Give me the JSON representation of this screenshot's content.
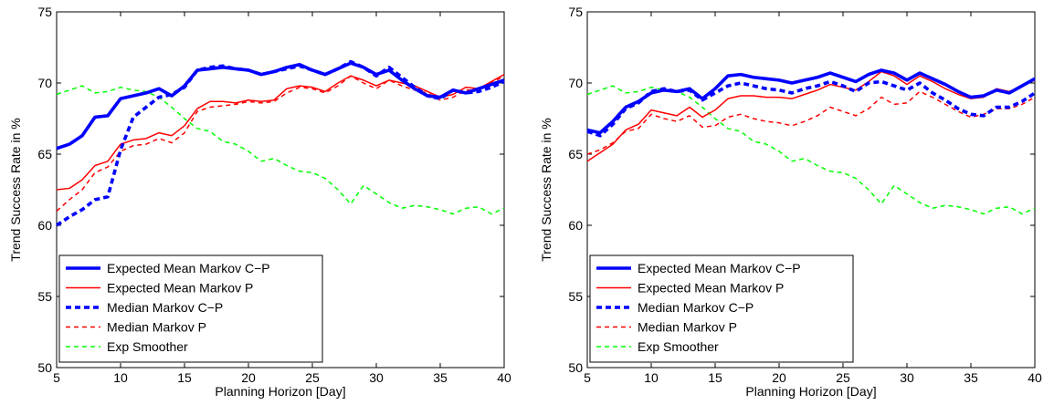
{
  "chart_data": [
    {
      "type": "line",
      "xlabel": "Planning Horizon [Day]",
      "ylabel": "Trend Success Rate in %",
      "xlim": [
        5,
        40
      ],
      "ylim": [
        50,
        75
      ],
      "xticks": [
        5,
        10,
        15,
        20,
        25,
        30,
        35,
        40
      ],
      "yticks": [
        50,
        55,
        60,
        65,
        70,
        75
      ],
      "grid": false,
      "legend_position": "bottom-left",
      "series": [
        {
          "name": "Expected Mean Markov C−P",
          "color": "#0000ff",
          "style": "solid",
          "weight": "thick",
          "x": [
            5,
            6,
            7,
            8,
            9,
            10,
            11,
            12,
            13,
            14,
            15,
            16,
            17,
            18,
            19,
            20,
            21,
            22,
            23,
            24,
            25,
            26,
            27,
            28,
            29,
            30,
            31,
            32,
            33,
            34,
            35,
            36,
            37,
            38,
            39,
            40
          ],
          "y": [
            65.4,
            65.7,
            66.3,
            67.6,
            67.7,
            68.9,
            69.1,
            69.3,
            69.6,
            69.1,
            69.8,
            70.9,
            71.0,
            71.1,
            71.0,
            70.9,
            70.6,
            70.8,
            71.1,
            71.3,
            70.9,
            70.6,
            71.0,
            71.4,
            71.1,
            70.6,
            70.9,
            70.2,
            69.6,
            69.1,
            69.0,
            69.5,
            69.3,
            69.6,
            69.9,
            70.2
          ]
        },
        {
          "name": "Expected Mean Markov P",
          "color": "#ff0000",
          "style": "solid",
          "weight": "thin",
          "x": [
            5,
            6,
            7,
            8,
            9,
            10,
            11,
            12,
            13,
            14,
            15,
            16,
            17,
            18,
            19,
            20,
            21,
            22,
            23,
            24,
            25,
            26,
            27,
            28,
            29,
            30,
            31,
            32,
            33,
            34,
            35,
            36,
            37,
            38,
            39,
            40
          ],
          "y": [
            62.5,
            62.6,
            63.2,
            64.2,
            64.5,
            65.7,
            66.0,
            66.1,
            66.5,
            66.3,
            67.0,
            68.2,
            68.7,
            68.7,
            68.6,
            68.8,
            68.7,
            68.8,
            69.6,
            69.8,
            69.7,
            69.4,
            70.0,
            70.5,
            70.2,
            69.8,
            70.2,
            70.0,
            69.8,
            69.4,
            69.0,
            69.2,
            69.7,
            69.6,
            70.1,
            70.6
          ]
        },
        {
          "name": "Median Markov C−P",
          "color": "#0000ff",
          "style": "dashed",
          "weight": "thick",
          "x": [
            5,
            6,
            7,
            8,
            9,
            10,
            11,
            12,
            13,
            14,
            15,
            16,
            17,
            18,
            19,
            20,
            21,
            22,
            23,
            24,
            25,
            26,
            27,
            28,
            29,
            30,
            31,
            32,
            33,
            34,
            35,
            36,
            37,
            38,
            39,
            40
          ],
          "y": [
            60.0,
            60.6,
            61.1,
            61.8,
            62.0,
            65.3,
            67.6,
            68.3,
            69.0,
            69.2,
            69.7,
            70.9,
            71.1,
            71.2,
            71.0,
            70.9,
            70.6,
            70.8,
            71.0,
            71.2,
            70.9,
            70.6,
            71.0,
            71.5,
            71.1,
            70.5,
            71.1,
            70.4,
            69.7,
            69.1,
            68.9,
            69.5,
            69.3,
            69.4,
            69.7,
            70.1
          ]
        },
        {
          "name": "Median Markov P",
          "color": "#ff0000",
          "style": "dashed",
          "weight": "thin",
          "x": [
            5,
            6,
            7,
            8,
            9,
            10,
            11,
            12,
            13,
            14,
            15,
            16,
            17,
            18,
            19,
            20,
            21,
            22,
            23,
            24,
            25,
            26,
            27,
            28,
            29,
            30,
            31,
            32,
            33,
            34,
            35,
            36,
            37,
            38,
            39,
            40
          ],
          "y": [
            61.0,
            61.8,
            62.5,
            63.7,
            64.1,
            65.2,
            65.6,
            65.7,
            66.1,
            65.8,
            66.5,
            68.0,
            68.3,
            68.4,
            68.5,
            68.7,
            68.6,
            68.7,
            69.3,
            69.7,
            69.6,
            69.3,
            69.8,
            70.5,
            70.0,
            69.6,
            70.2,
            69.8,
            69.5,
            69.3,
            68.8,
            69.0,
            69.5,
            69.5,
            70.0,
            70.5
          ]
        },
        {
          "name": "Exp Smoother",
          "color": "#00ff00",
          "style": "dashed",
          "weight": "thin",
          "x": [
            5,
            6,
            7,
            8,
            9,
            10,
            11,
            12,
            13,
            14,
            15,
            16,
            17,
            18,
            19,
            20,
            21,
            22,
            23,
            24,
            25,
            26,
            27,
            28,
            29,
            30,
            31,
            32,
            33,
            34,
            35,
            36,
            37,
            38,
            39,
            40
          ],
          "y": [
            69.2,
            69.5,
            69.8,
            69.3,
            69.4,
            69.7,
            69.5,
            69.4,
            69.0,
            68.3,
            67.5,
            66.8,
            66.6,
            65.9,
            65.7,
            65.2,
            64.5,
            64.7,
            64.2,
            63.8,
            63.7,
            63.3,
            62.5,
            61.5,
            62.8,
            62.2,
            61.6,
            61.2,
            61.4,
            61.3,
            61.1,
            60.8,
            61.2,
            61.3,
            60.8,
            61.2
          ]
        }
      ]
    },
    {
      "type": "line",
      "xlabel": "Planning Horizon [Day]",
      "ylabel": "Trend Success Rate in %",
      "xlim": [
        5,
        40
      ],
      "ylim": [
        50,
        75
      ],
      "xticks": [
        5,
        10,
        15,
        20,
        25,
        30,
        35,
        40
      ],
      "yticks": [
        50,
        55,
        60,
        65,
        70,
        75
      ],
      "grid": false,
      "legend_position": "bottom-left",
      "series": [
        {
          "name": "Expected Mean Markov C−P",
          "color": "#0000ff",
          "style": "solid",
          "weight": "thick",
          "x": [
            5,
            6,
            7,
            8,
            9,
            10,
            11,
            12,
            13,
            14,
            15,
            16,
            17,
            18,
            19,
            20,
            21,
            22,
            23,
            24,
            25,
            26,
            27,
            28,
            29,
            30,
            31,
            32,
            33,
            34,
            35,
            36,
            37,
            38,
            39,
            40
          ],
          "y": [
            66.7,
            66.5,
            67.3,
            68.3,
            68.7,
            69.3,
            69.5,
            69.4,
            69.6,
            68.9,
            69.6,
            70.5,
            70.6,
            70.4,
            70.3,
            70.2,
            70.0,
            70.2,
            70.4,
            70.7,
            70.4,
            70.1,
            70.6,
            70.9,
            70.7,
            70.2,
            70.7,
            70.3,
            69.9,
            69.4,
            69.0,
            69.1,
            69.5,
            69.3,
            69.8,
            70.3
          ]
        },
        {
          "name": "Expected Mean Markov P",
          "color": "#ff0000",
          "style": "solid",
          "weight": "thin",
          "x": [
            5,
            6,
            7,
            8,
            9,
            10,
            11,
            12,
            13,
            14,
            15,
            16,
            17,
            18,
            19,
            20,
            21,
            22,
            23,
            24,
            25,
            26,
            27,
            28,
            29,
            30,
            31,
            32,
            33,
            34,
            35,
            36,
            37,
            38,
            39,
            40
          ],
          "y": [
            64.5,
            65.1,
            65.7,
            66.7,
            67.1,
            68.1,
            67.9,
            67.7,
            68.3,
            67.6,
            68.1,
            68.9,
            69.1,
            69.1,
            69.0,
            69.0,
            68.9,
            69.2,
            69.5,
            69.9,
            69.7,
            69.5,
            70.1,
            70.8,
            70.5,
            69.9,
            70.5,
            70.1,
            69.6,
            69.2,
            68.9,
            69.0,
            69.6,
            69.4,
            69.8,
            70.2
          ]
        },
        {
          "name": "Median Markov C−P",
          "color": "#0000ff",
          "style": "dashed",
          "weight": "thick",
          "x": [
            5,
            6,
            7,
            8,
            9,
            10,
            11,
            12,
            13,
            14,
            15,
            16,
            17,
            18,
            19,
            20,
            21,
            22,
            23,
            24,
            25,
            26,
            27,
            28,
            29,
            30,
            31,
            32,
            33,
            34,
            35,
            36,
            37,
            38,
            39,
            40
          ],
          "y": [
            66.6,
            66.3,
            67.1,
            68.2,
            68.6,
            69.4,
            69.6,
            69.4,
            69.5,
            68.8,
            69.3,
            69.8,
            70.0,
            69.8,
            69.6,
            69.5,
            69.3,
            69.6,
            69.8,
            70.1,
            69.8,
            69.4,
            70.0,
            70.1,
            69.8,
            69.5,
            70.0,
            69.3,
            68.8,
            68.2,
            67.8,
            67.7,
            68.3,
            68.3,
            68.7,
            69.3
          ]
        },
        {
          "name": "Median Markov P",
          "color": "#ff0000",
          "style": "dashed",
          "weight": "thin",
          "x": [
            5,
            6,
            7,
            8,
            9,
            10,
            11,
            12,
            13,
            14,
            15,
            16,
            17,
            18,
            19,
            20,
            21,
            22,
            23,
            24,
            25,
            26,
            27,
            28,
            29,
            30,
            31,
            32,
            33,
            34,
            35,
            36,
            37,
            38,
            39,
            40
          ],
          "y": [
            65.0,
            65.3,
            65.8,
            66.6,
            66.8,
            67.8,
            67.5,
            67.3,
            67.7,
            66.9,
            67.0,
            67.6,
            67.8,
            67.5,
            67.3,
            67.2,
            67.0,
            67.3,
            67.7,
            68.3,
            68.0,
            67.7,
            68.2,
            69.0,
            68.5,
            68.6,
            69.4,
            69.0,
            68.5,
            68.0,
            67.6,
            67.8,
            68.2,
            68.2,
            68.5,
            69.0
          ]
        },
        {
          "name": "Exp Smoother",
          "color": "#00ff00",
          "style": "dashed",
          "weight": "thin",
          "x": [
            5,
            6,
            7,
            8,
            9,
            10,
            11,
            12,
            13,
            14,
            15,
            16,
            17,
            18,
            19,
            20,
            21,
            22,
            23,
            24,
            25,
            26,
            27,
            28,
            29,
            30,
            31,
            32,
            33,
            34,
            35,
            36,
            37,
            38,
            39,
            40
          ],
          "y": [
            69.2,
            69.5,
            69.8,
            69.3,
            69.4,
            69.7,
            69.5,
            69.4,
            69.0,
            68.3,
            67.5,
            66.8,
            66.6,
            65.9,
            65.7,
            65.2,
            64.5,
            64.7,
            64.2,
            63.8,
            63.7,
            63.3,
            62.5,
            61.5,
            62.8,
            62.2,
            61.6,
            61.2,
            61.4,
            61.3,
            61.1,
            60.8,
            61.2,
            61.3,
            60.8,
            61.2
          ]
        }
      ]
    }
  ]
}
